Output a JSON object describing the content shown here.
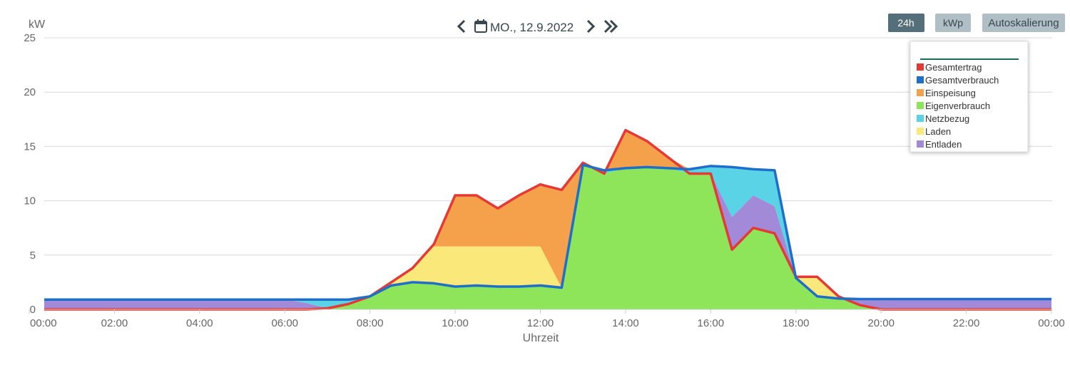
{
  "header": {
    "date": "MO., 12.9.2022",
    "buttons": [
      "24h",
      "kWp",
      "Autoskalierung"
    ]
  },
  "chart_data": {
    "type": "stacked-area",
    "y_axis_label": "kW",
    "x_axis_label": "Uhrzeit",
    "xlim": [
      0,
      24
    ],
    "xticks": [
      {
        "value": 0,
        "label": "00:00"
      },
      {
        "value": 2,
        "label": "02:00"
      },
      {
        "value": 4,
        "label": "04:00"
      },
      {
        "value": 6,
        "label": "06:00"
      },
      {
        "value": 8,
        "label": "08:00"
      },
      {
        "value": 10,
        "label": "10:00"
      },
      {
        "value": 12,
        "label": "12:00"
      },
      {
        "value": 14,
        "label": "14:00"
      },
      {
        "value": 16,
        "label": "16:00"
      },
      {
        "value": 18,
        "label": "18:00"
      },
      {
        "value": 20,
        "label": "20:00"
      },
      {
        "value": 22,
        "label": "22:00"
      },
      {
        "value": 24,
        "label": "00:00"
      }
    ],
    "ylim": [
      0,
      25
    ],
    "yticks": [
      0,
      5,
      10,
      15,
      20,
      25
    ],
    "grid": true,
    "x": [
      0,
      0.5,
      1,
      1.5,
      2,
      2.5,
      3,
      3.5,
      4,
      4.5,
      5,
      5.5,
      6,
      6.5,
      7,
      7.5,
      8,
      8.5,
      9,
      9.5,
      10,
      10.5,
      11,
      11.5,
      12,
      12.5,
      13,
      13.5,
      14,
      14.5,
      15,
      15.5,
      16,
      16.5,
      17,
      17.5,
      18,
      18.5,
      19,
      19.5,
      20,
      20.5,
      21,
      21.5,
      22,
      22.5,
      23,
      23.5,
      24
    ],
    "series": [
      {
        "name": "Gesamtertrag",
        "type": "line",
        "color": "#e53935",
        "values": [
          0,
          0,
          0,
          0,
          0,
          0,
          0,
          0,
          0,
          0,
          0,
          0,
          0,
          0,
          0.1,
          0.5,
          1.2,
          2.5,
          3.8,
          6,
          10.5,
          10.5,
          9.3,
          10.5,
          11.5,
          11,
          13.5,
          12.5,
          16.5,
          15.5,
          14,
          12.5,
          12.5,
          5.5,
          7.5,
          7,
          3,
          3,
          1.2,
          0.4,
          0,
          0,
          0,
          0,
          0,
          0,
          0,
          0,
          0
        ]
      },
      {
        "name": "Gesamtverbrauch",
        "type": "line",
        "color": "#1e6fc9",
        "values": [
          0.9,
          0.9,
          0.9,
          0.9,
          0.9,
          0.9,
          0.9,
          0.9,
          0.9,
          0.9,
          0.9,
          0.9,
          0.9,
          0.9,
          0.9,
          0.9,
          1.2,
          2.2,
          2.5,
          2.4,
          2.1,
          2.2,
          2.1,
          2.1,
          2.2,
          2,
          13.3,
          12.8,
          13,
          13.1,
          13,
          12.9,
          13.2,
          13.1,
          12.9,
          12.8,
          2.9,
          1.2,
          1,
          0.95,
          0.95,
          0.95,
          0.95,
          0.95,
          0.95,
          0.95,
          0.95,
          0.95,
          0.95
        ]
      },
      {
        "name": "Einspeisung",
        "type": "area",
        "color": "#f5a04a",
        "values": [
          0,
          0,
          0,
          0,
          0,
          0,
          0,
          0,
          0,
          0,
          0,
          0,
          0,
          0,
          0,
          0,
          0,
          0,
          0,
          0.2,
          4.7,
          4.7,
          3.5,
          4.7,
          5.7,
          9,
          0.2,
          0,
          3.5,
          2.4,
          1,
          0,
          0,
          0,
          0,
          0,
          0.1,
          0,
          0,
          0,
          0,
          0,
          0,
          0,
          0,
          0,
          0,
          0,
          0
        ]
      },
      {
        "name": "Eigenverbrauch",
        "type": "area",
        "color": "#8ee55a",
        "values": [
          0,
          0,
          0,
          0,
          0,
          0,
          0,
          0,
          0,
          0,
          0,
          0,
          0,
          0,
          0.1,
          0.5,
          1.2,
          2.2,
          2.5,
          2.4,
          2.1,
          2.2,
          2.1,
          2.1,
          2.2,
          2,
          13.3,
          12.5,
          13,
          13.1,
          13,
          12.5,
          12.5,
          5.5,
          7.5,
          7,
          2.9,
          1.2,
          1,
          0.4,
          0,
          0,
          0,
          0,
          0,
          0,
          0,
          0,
          0
        ]
      },
      {
        "name": "Netzbezug",
        "type": "area",
        "color": "#5bd3e6",
        "values": [
          0,
          0,
          0,
          0,
          0,
          0,
          0,
          0,
          0,
          0,
          0,
          0,
          0,
          0.3,
          0.8,
          0.4,
          0,
          0,
          0,
          0,
          0,
          0,
          0,
          0,
          0,
          0,
          0,
          0.3,
          0,
          0,
          0,
          0.4,
          0.7,
          4.6,
          2.4,
          3.3,
          0,
          0,
          0,
          0,
          0,
          0,
          0,
          0,
          0,
          0,
          0,
          0,
          0
        ]
      },
      {
        "name": "Laden",
        "type": "area",
        "color": "#fbe87a",
        "values": [
          0,
          0,
          0,
          0,
          0,
          0,
          0,
          0,
          0,
          0,
          0,
          0,
          0,
          0,
          0,
          0,
          0,
          0.3,
          1.3,
          3.4,
          3.7,
          3.6,
          3.7,
          3.7,
          3.6,
          0,
          0,
          0,
          0,
          0,
          0,
          0,
          0,
          0,
          0,
          0,
          0,
          1.8,
          0.2,
          0,
          0,
          0,
          0,
          0,
          0,
          0,
          0,
          0,
          0
        ]
      },
      {
        "name": "Entladen",
        "type": "area",
        "color": "#a38ad8",
        "values": [
          0.9,
          0.9,
          0.9,
          0.9,
          0.9,
          0.9,
          0.9,
          0.9,
          0.9,
          0.9,
          0.9,
          0.9,
          0.9,
          0.6,
          0,
          0,
          0,
          0,
          0,
          0,
          0,
          0,
          0,
          0,
          0,
          0,
          0,
          0,
          0,
          0,
          0,
          0,
          0,
          3,
          3,
          2.5,
          0,
          0,
          0,
          0.55,
          0.95,
          0.95,
          0.95,
          0.95,
          0.95,
          0.95,
          0.95,
          0.95,
          0.95
        ]
      }
    ]
  }
}
